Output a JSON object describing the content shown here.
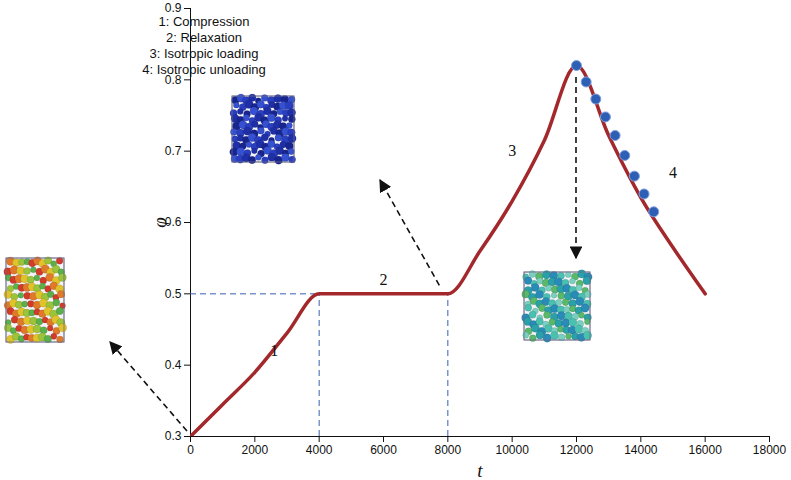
{
  "chart_data": {
    "type": "line",
    "xlabel": "t",
    "ylabel": "φ",
    "xlim": [
      0,
      18000
    ],
    "ylim": [
      0.3,
      0.9
    ],
    "xticks": [
      0,
      2000,
      4000,
      6000,
      8000,
      10000,
      12000,
      14000,
      16000,
      18000
    ],
    "yticks": [
      0.3,
      0.4,
      0.5,
      0.6,
      0.7,
      0.8,
      0.9
    ],
    "grid": false,
    "series": [
      {
        "type": "line",
        "color": "#a3282c",
        "x": [
          0,
          1000,
          2000,
          3000,
          4000,
          6000,
          8000,
          9000,
          10000,
          11000,
          12000,
          13000,
          14000,
          15000,
          16000
        ],
        "values": [
          0.3,
          0.345,
          0.39,
          0.445,
          0.5,
          0.5,
          0.5,
          0.56,
          0.63,
          0.715,
          0.82,
          0.722,
          0.635,
          0.565,
          0.5
        ]
      },
      {
        "type": "scatter",
        "color": "#2d5fb5",
        "marker": "circle",
        "x": [
          12000,
          12300,
          12600,
          12900,
          13200,
          13500,
          13800,
          14100,
          14400
        ],
        "values": [
          0.82,
          0.797,
          0.773,
          0.748,
          0.722,
          0.694,
          0.665,
          0.64,
          0.615
        ]
      }
    ],
    "reference_lines": {
      "y": 0.5,
      "x": [
        4000,
        8000
      ],
      "line_style": "dashed"
    },
    "annotations": [
      {
        "text": "1",
        "x": 2600,
        "y": 0.42
      },
      {
        "text": "2",
        "x": 6000,
        "y": 0.52
      },
      {
        "text": "3",
        "x": 10000,
        "y": 0.7
      },
      {
        "text": "4",
        "x": 15000,
        "y": 0.67
      }
    ],
    "phases": [
      "1: Compression",
      "2: Relaxation",
      "3: Isotropic loading",
      "4: Isotropic unloading"
    ]
  }
}
